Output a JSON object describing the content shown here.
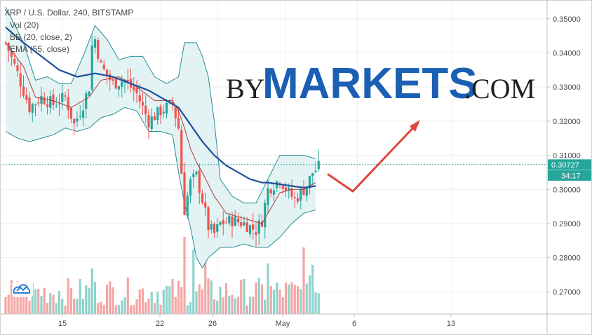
{
  "header": {
    "title": "XRP / U.S. Dollar, 240, BITSTAMP",
    "indicators": [
      "Vol (20)",
      "BB (20, close, 2)",
      "EMA (55, close)"
    ]
  },
  "watermark": {
    "prefix": "BY",
    "main": "MARKETS",
    "suffix": ".COM"
  },
  "price_badge": {
    "value": "0.30727",
    "countdown": "34:17"
  },
  "colors": {
    "up": "#26a69a",
    "down": "#ef5350",
    "bb_band": "#2a8c96",
    "bb_fill": "#e3f3f4",
    "bb_basis": "#b03a3a",
    "ema": "#1e4f9c",
    "arrow": "#e0463d",
    "badge": "#26a69a",
    "vol_up": "#8fd3cc",
    "vol_down": "#f5a6a4"
  },
  "icons": {
    "logo": "tradingview-cloud-icon"
  },
  "chart_data": {
    "type": "candlestick",
    "y_ticks": [
      "0.35000",
      "0.34000",
      "0.33000",
      "0.32000",
      "0.31000",
      "0.30000",
      "0.29000",
      "0.28000",
      "0.27000"
    ],
    "x_ticks": [
      "15",
      "22",
      "26",
      "May",
      "6",
      "13"
    ],
    "ylim": [
      0.2635,
      0.3555
    ],
    "last_price": 0.30727,
    "waypoints": [
      [
        0,
        0.343
      ],
      [
        4,
        0.334
      ],
      [
        8,
        0.324
      ],
      [
        12,
        0.327
      ],
      [
        16,
        0.325
      ],
      [
        20,
        0.327
      ],
      [
        23,
        0.319
      ],
      [
        26,
        0.325
      ],
      [
        28,
        0.33
      ],
      [
        29,
        0.342
      ],
      [
        30,
        0.344
      ],
      [
        32,
        0.336
      ],
      [
        36,
        0.331
      ],
      [
        40,
        0.332
      ],
      [
        44,
        0.328
      ],
      [
        48,
        0.32
      ],
      [
        52,
        0.323
      ],
      [
        56,
        0.325
      ],
      [
        58,
        0.318
      ],
      [
        59,
        0.305
      ],
      [
        60,
        0.294
      ],
      [
        62,
        0.302
      ],
      [
        64,
        0.304
      ],
      [
        66,
        0.297
      ],
      [
        68,
        0.289
      ],
      [
        70,
        0.287
      ],
      [
        72,
        0.29
      ],
      [
        76,
        0.291
      ],
      [
        80,
        0.29
      ],
      [
        84,
        0.288
      ],
      [
        86,
        0.291
      ],
      [
        88,
        0.3
      ],
      [
        92,
        0.303
      ],
      [
        95,
        0.299
      ],
      [
        97,
        0.297
      ],
      [
        99,
        0.299
      ],
      [
        101,
        0.301
      ],
      [
        103,
        0.305
      ],
      [
        105,
        0.3065
      ]
    ],
    "bb_upper_points": [
      [
        0,
        0.3535
      ],
      [
        6,
        0.343
      ],
      [
        10,
        0.332
      ],
      [
        14,
        0.333
      ],
      [
        18,
        0.331
      ],
      [
        22,
        0.331
      ],
      [
        26,
        0.339
      ],
      [
        30,
        0.348
      ],
      [
        34,
        0.344
      ],
      [
        38,
        0.338
      ],
      [
        42,
        0.339
      ],
      [
        46,
        0.339
      ],
      [
        50,
        0.333
      ],
      [
        54,
        0.331
      ],
      [
        58,
        0.333
      ],
      [
        60,
        0.343
      ],
      [
        64,
        0.343
      ],
      [
        66,
        0.339
      ],
      [
        68,
        0.333
      ],
      [
        70,
        0.32
      ],
      [
        72,
        0.303
      ],
      [
        76,
        0.298
      ],
      [
        80,
        0.296
      ],
      [
        84,
        0.296
      ],
      [
        88,
        0.303
      ],
      [
        92,
        0.31
      ],
      [
        96,
        0.31
      ],
      [
        100,
        0.31
      ],
      [
        104,
        0.309
      ]
    ],
    "bb_lower_points": [
      [
        0,
        0.317
      ],
      [
        4,
        0.315
      ],
      [
        8,
        0.314
      ],
      [
        12,
        0.315
      ],
      [
        16,
        0.316
      ],
      [
        20,
        0.318
      ],
      [
        24,
        0.317
      ],
      [
        28,
        0.318
      ],
      [
        32,
        0.321
      ],
      [
        36,
        0.322
      ],
      [
        40,
        0.324
      ],
      [
        44,
        0.323
      ],
      [
        48,
        0.317
      ],
      [
        52,
        0.317
      ],
      [
        56,
        0.316
      ],
      [
        58,
        0.305
      ],
      [
        60,
        0.296
      ],
      [
        62,
        0.289
      ],
      [
        64,
        0.28
      ],
      [
        66,
        0.277
      ],
      [
        68,
        0.28
      ],
      [
        72,
        0.283
      ],
      [
        76,
        0.283
      ],
      [
        80,
        0.284
      ],
      [
        84,
        0.283
      ],
      [
        86,
        0.283
      ],
      [
        88,
        0.283
      ],
      [
        92,
        0.286
      ],
      [
        96,
        0.29
      ],
      [
        100,
        0.293
      ],
      [
        104,
        0.294
      ]
    ],
    "ema_points": [
      [
        0,
        0.3475
      ],
      [
        6,
        0.343
      ],
      [
        12,
        0.339
      ],
      [
        18,
        0.335
      ],
      [
        24,
        0.333
      ],
      [
        30,
        0.334
      ],
      [
        36,
        0.333
      ],
      [
        42,
        0.331
      ],
      [
        48,
        0.329
      ],
      [
        54,
        0.326
      ],
      [
        58,
        0.324
      ],
      [
        62,
        0.319
      ],
      [
        66,
        0.314
      ],
      [
        70,
        0.31
      ],
      [
        74,
        0.307
      ],
      [
        78,
        0.305
      ],
      [
        82,
        0.303
      ],
      [
        86,
        0.302
      ],
      [
        88,
        0.302
      ],
      [
        92,
        0.3015
      ],
      [
        96,
        0.301
      ],
      [
        100,
        0.3005
      ],
      [
        104,
        0.301
      ]
    ],
    "basis_points": [
      [
        0,
        0.343
      ],
      [
        6,
        0.336
      ],
      [
        10,
        0.327
      ],
      [
        16,
        0.326
      ],
      [
        22,
        0.324
      ],
      [
        28,
        0.327
      ],
      [
        32,
        0.332
      ],
      [
        38,
        0.333
      ],
      [
        44,
        0.33
      ],
      [
        50,
        0.326
      ],
      [
        56,
        0.326
      ],
      [
        58,
        0.323
      ],
      [
        60,
        0.318
      ],
      [
        62,
        0.312
      ],
      [
        64,
        0.308
      ],
      [
        66,
        0.305
      ],
      [
        70,
        0.298
      ],
      [
        74,
        0.293
      ],
      [
        78,
        0.292
      ],
      [
        82,
        0.291
      ],
      [
        86,
        0.29
      ],
      [
        88,
        0.293
      ],
      [
        92,
        0.299
      ],
      [
        96,
        0.3
      ],
      [
        100,
        0.3
      ],
      [
        104,
        0.302
      ]
    ]
  }
}
